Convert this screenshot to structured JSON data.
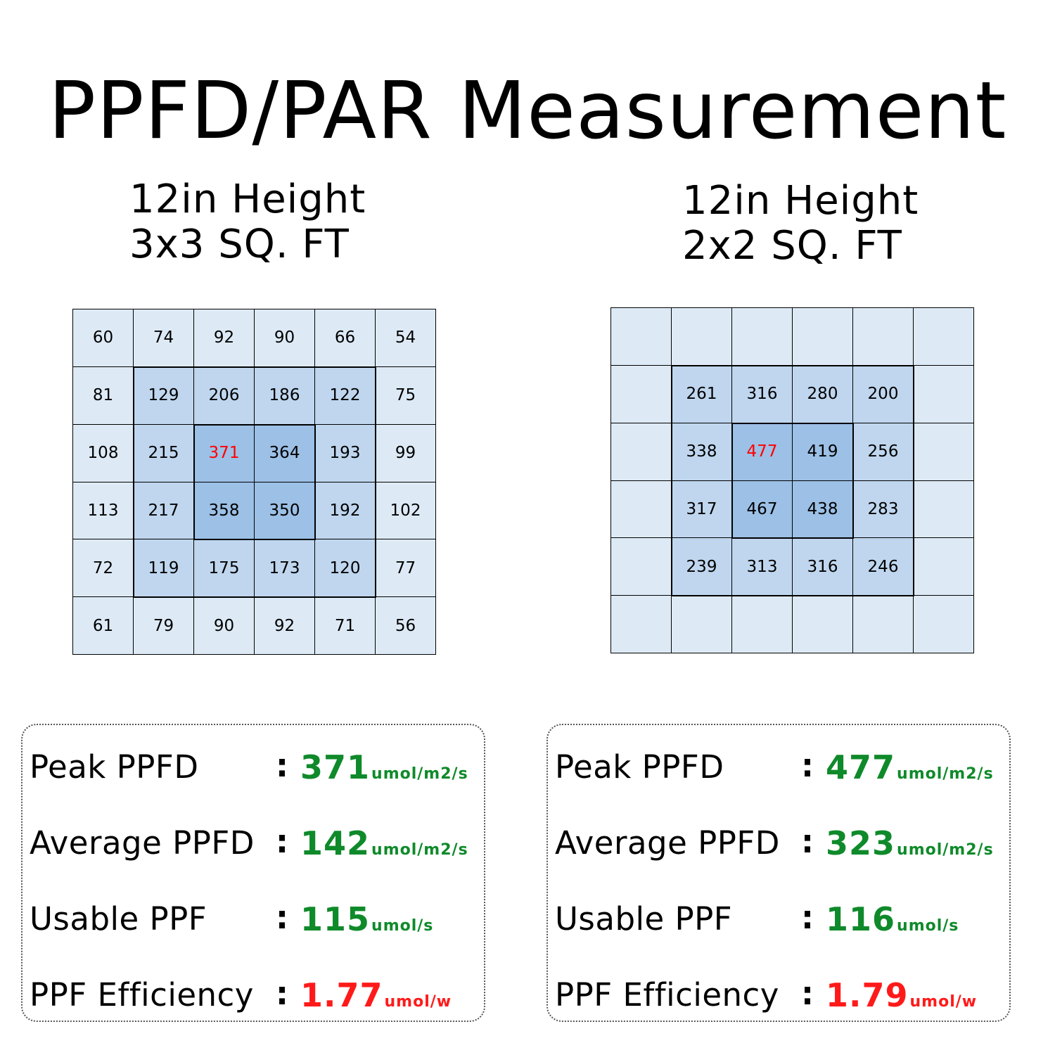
{
  "title": "PPFD/PAR Measurement",
  "chart_data": [
    {
      "type": "heatmap",
      "subtitle_lines": [
        "12in Height",
        "3x3 SQ. FT"
      ],
      "rows": [
        [
          60,
          74,
          92,
          90,
          66,
          54
        ],
        [
          81,
          129,
          206,
          186,
          122,
          75
        ],
        [
          108,
          215,
          371,
          364,
          193,
          99
        ],
        [
          113,
          217,
          358,
          350,
          192,
          102
        ],
        [
          72,
          119,
          175,
          173,
          120,
          77
        ],
        [
          61,
          79,
          90,
          92,
          71,
          56
        ]
      ],
      "peak": {
        "row": 2,
        "col": 2,
        "value": 371
      },
      "outer_zone": {
        "row_start": 1,
        "row_end": 4,
        "col_start": 1,
        "col_end": 4
      },
      "inner_zone": {
        "row_start": 2,
        "row_end": 3,
        "col_start": 2,
        "col_end": 3
      },
      "stats": [
        {
          "label": "Peak PPFD",
          "value": "371",
          "unit": "umol/m2/s",
          "color": "#0f8a2a"
        },
        {
          "label": "Average PPFD",
          "value": "142",
          "unit": "umol/m2/s",
          "color": "#0f8a2a"
        },
        {
          "label": "Usable PPF",
          "value": "115",
          "unit": "umol/s",
          "color": "#0f8a2a"
        },
        {
          "label": "PPF Efficiency",
          "value": "1.77",
          "unit": "umol/w",
          "color": "#ff1a1a"
        }
      ]
    },
    {
      "type": "heatmap",
      "subtitle_lines": [
        "12in Height",
        "2x2 SQ. FT"
      ],
      "rows": [
        [
          null,
          null,
          null,
          null,
          null,
          null
        ],
        [
          null,
          261,
          316,
          280,
          200,
          null
        ],
        [
          null,
          338,
          477,
          419,
          256,
          null
        ],
        [
          null,
          317,
          467,
          438,
          283,
          null
        ],
        [
          null,
          239,
          313,
          316,
          246,
          null
        ],
        [
          null,
          null,
          null,
          null,
          null,
          null
        ]
      ],
      "peak": {
        "row": 2,
        "col": 2,
        "value": 477
      },
      "outer_zone": {
        "row_start": 1,
        "row_end": 4,
        "col_start": 1,
        "col_end": 4
      },
      "inner_zone": {
        "row_start": 2,
        "row_end": 3,
        "col_start": 2,
        "col_end": 3
      },
      "stats": [
        {
          "label": "Peak PPFD",
          "value": "477",
          "unit": "umol/m2/s",
          "color": "#0f8a2a"
        },
        {
          "label": "Average PPFD",
          "value": "323",
          "unit": "umol/m2/s",
          "color": "#0f8a2a"
        },
        {
          "label": "Usable PPF",
          "value": "116",
          "unit": "umol/s",
          "color": "#0f8a2a"
        },
        {
          "label": "PPF Efficiency",
          "value": "1.79",
          "unit": "umol/w",
          "color": "#ff1a1a"
        }
      ]
    }
  ],
  "colon": ":"
}
